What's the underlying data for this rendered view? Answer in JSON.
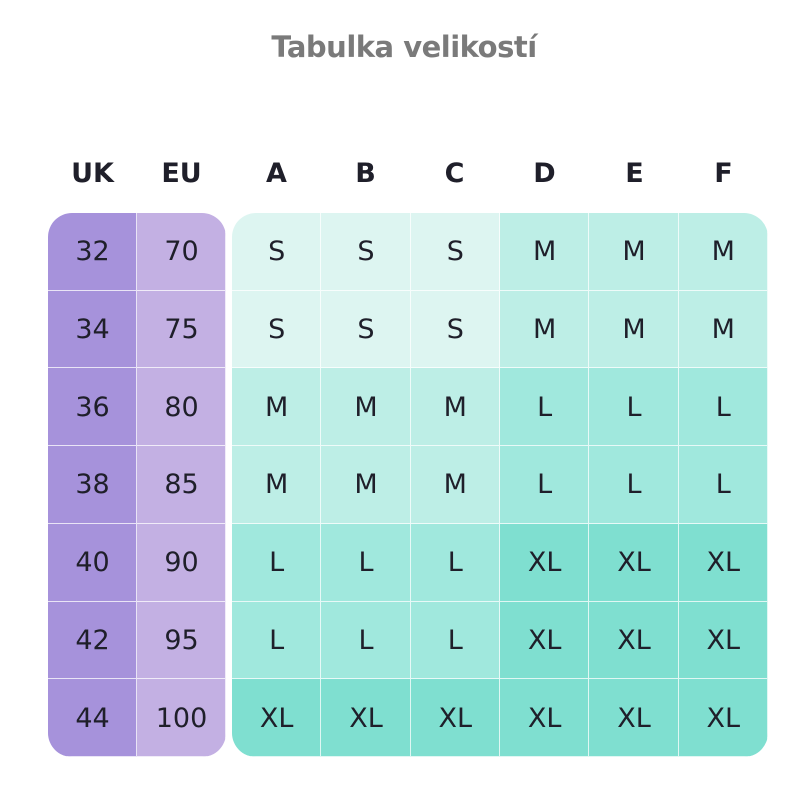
{
  "title": "Tabulka velikostí",
  "headers": [
    "UK",
    "EU",
    "A",
    "B",
    "C",
    "D",
    "E",
    "F"
  ],
  "rows": [
    {
      "uk": "32",
      "eu": "70",
      "sizes": [
        "S",
        "S",
        "S",
        "M",
        "M",
        "M"
      ]
    },
    {
      "uk": "34",
      "eu": "75",
      "sizes": [
        "S",
        "S",
        "S",
        "M",
        "M",
        "M"
      ]
    },
    {
      "uk": "36",
      "eu": "80",
      "sizes": [
        "M",
        "M",
        "M",
        "L",
        "L",
        "L"
      ]
    },
    {
      "uk": "38",
      "eu": "85",
      "sizes": [
        "M",
        "M",
        "M",
        "L",
        "L",
        "L"
      ]
    },
    {
      "uk": "40",
      "eu": "90",
      "sizes": [
        "L",
        "L",
        "L",
        "XL",
        "XL",
        "XL"
      ]
    },
    {
      "uk": "42",
      "eu": "95",
      "sizes": [
        "L",
        "L",
        "L",
        "XL",
        "XL",
        "XL"
      ]
    },
    {
      "uk": "44",
      "eu": "100",
      "sizes": [
        "XL",
        "XL",
        "XL",
        "XL",
        "XL",
        "XL"
      ]
    }
  ],
  "colors": {
    "uk": "#a692db",
    "eu": "#c3b0e3",
    "S": "#ddf5f1",
    "M": "#bdeee6",
    "L": "#a0e8dd",
    "XL": "#7fdfd0"
  }
}
